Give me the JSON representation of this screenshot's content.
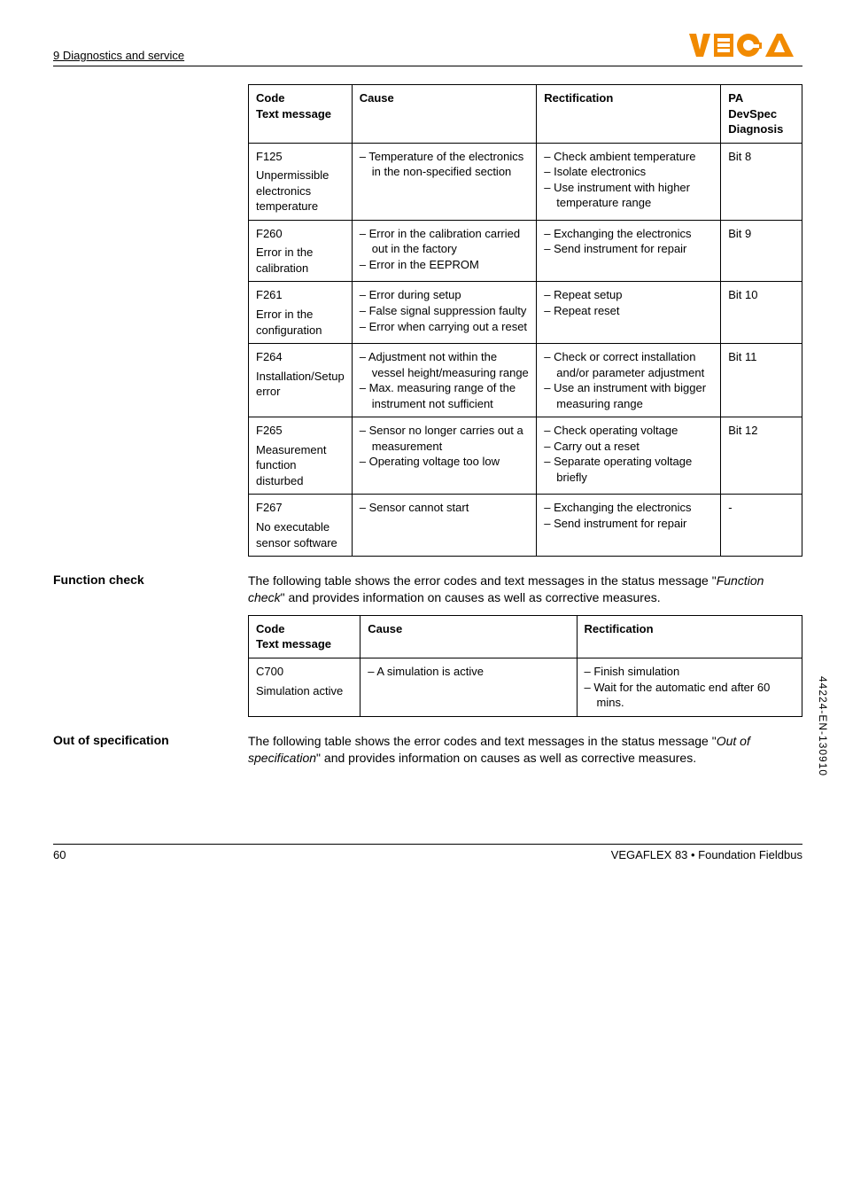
{
  "header": {
    "section": "9 Diagnostics and service"
  },
  "logo": {
    "text": "VEGA",
    "fill": "#f18a00",
    "triangle_fill": "#ffffff"
  },
  "table1": {
    "headers": {
      "code": "Code",
      "code_sub": "Text message",
      "cause": "Cause",
      "rect": "Rectification",
      "pa": "PA DevSpec",
      "pa_sub": "Diagnosis"
    },
    "rows": [
      {
        "code": "F125",
        "code_text": "Unpermissible electronics temperature",
        "cause": [
          "Temperature of the electronics in the non-specified section"
        ],
        "rect": [
          "Check ambient temperature",
          "Isolate electronics",
          "Use instrument with higher temperature range"
        ],
        "pa": "Bit 8"
      },
      {
        "code": "F260",
        "code_text": "Error in the calibration",
        "cause": [
          "Error in the calibration carried out in the factory",
          "Error in the EEPROM"
        ],
        "rect": [
          "Exchanging the electronics",
          "Send instrument for repair"
        ],
        "pa": "Bit 9"
      },
      {
        "code": "F261",
        "code_text": "Error in the configuration",
        "cause": [
          "Error during setup",
          "False signal suppression faulty",
          "Error when carrying out a reset"
        ],
        "rect": [
          "Repeat setup",
          "Repeat reset"
        ],
        "pa": "Bit 10"
      },
      {
        "code": "F264",
        "code_text": "Installation/Setup error",
        "cause": [
          "Adjustment not within the vessel height/measuring range",
          "Max. measuring range of the instrument not sufficient"
        ],
        "rect": [
          "Check or correct installation and/or parameter adjustment",
          "Use an instrument with bigger measuring range"
        ],
        "pa": "Bit 11"
      },
      {
        "code": "F265",
        "code_text": "Measurement function disturbed",
        "cause": [
          "Sensor no longer carries out a measurement",
          "Operating voltage too low"
        ],
        "rect": [
          "Check operating voltage",
          "Carry out a reset",
          "Separate operating voltage briefly"
        ],
        "pa": "Bit 12"
      },
      {
        "code": "F267",
        "code_text": "No executable sensor software",
        "cause": [
          "Sensor cannot start"
        ],
        "rect": [
          "Exchanging the electronics",
          "Send instrument for repair"
        ],
        "pa": "-"
      }
    ]
  },
  "function_check": {
    "label": "Function check",
    "para_pre": "The following table shows the error codes and text messages in the status message \"",
    "para_italic": "Function check",
    "para_post": "\" and provides information on causes as well as corrective measures."
  },
  "table2": {
    "headers": {
      "code": "Code",
      "code_sub": "Text message",
      "cause": "Cause",
      "rect": "Rectification"
    },
    "rows": [
      {
        "code": "C700",
        "code_text": "Simulation active",
        "cause": [
          "A simulation is active"
        ],
        "rect": [
          "Finish simulation",
          "Wait for the automatic end after 60 mins."
        ]
      }
    ]
  },
  "out_of_spec": {
    "label": "Out of specification",
    "para_pre": "The following table shows the error codes and text messages in the status message \"",
    "para_italic": "Out of specification",
    "para_post": "\" and provides information on causes as well as corrective measures."
  },
  "footer": {
    "page": "60",
    "product": "VEGAFLEX 83 • Foundation Fieldbus"
  },
  "side_code": "44224-EN-130910"
}
